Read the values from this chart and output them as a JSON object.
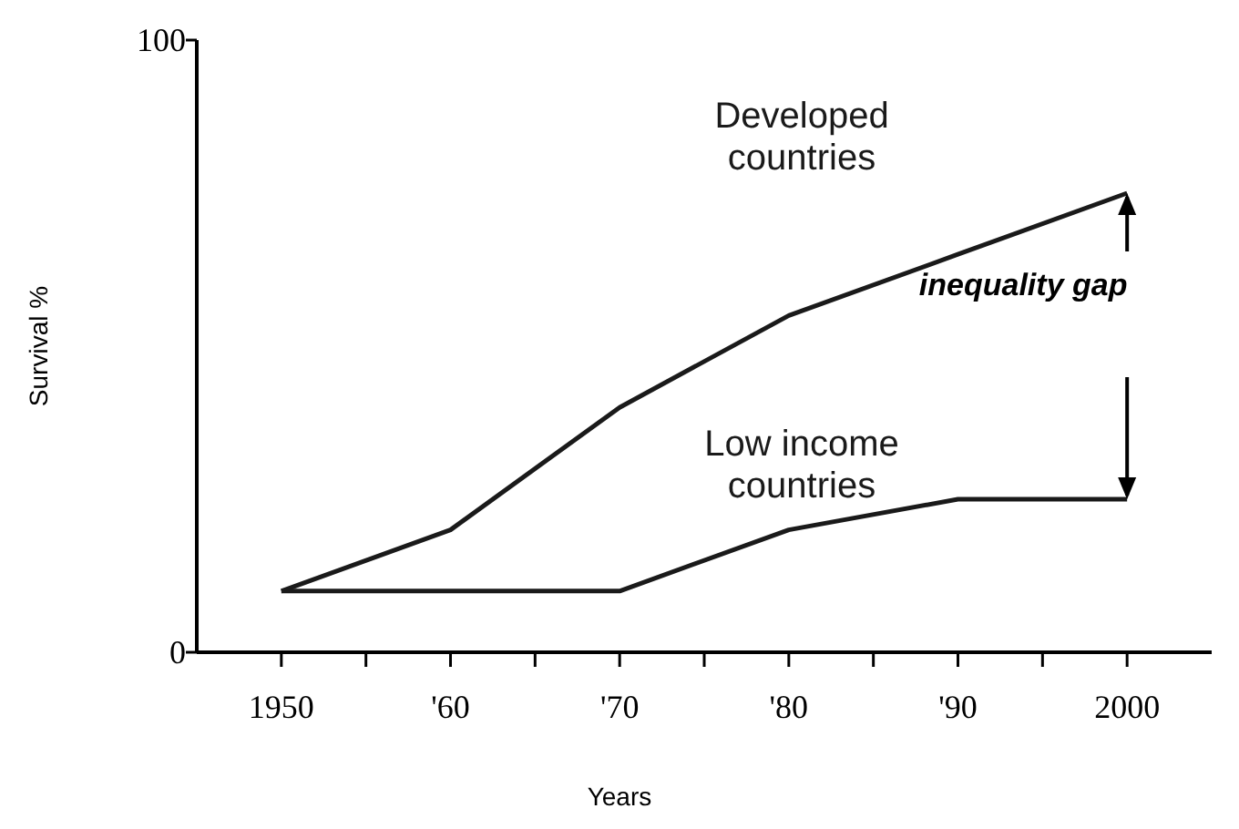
{
  "chart_data": {
    "type": "line",
    "xlabel": "Years",
    "ylabel": "Survival %",
    "x": [
      1950,
      1960,
      1970,
      1980,
      1990,
      2000
    ],
    "series": [
      {
        "name": "Developed countries",
        "color": "#1a1a1a",
        "values": [
          10,
          20,
          40,
          55,
          65,
          75
        ]
      },
      {
        "name": "Low income countries",
        "color": "#1a1a1a",
        "values": [
          10,
          10,
          10,
          20,
          25,
          25
        ]
      }
    ],
    "xlim": [
      1945,
      2005
    ],
    "xticks": [
      1950,
      {
        "value": 1955,
        "label": null
      },
      {
        "value": 1960,
        "label": "'60"
      },
      {
        "value": 1965,
        "label": null
      },
      {
        "value": 1970,
        "label": "'70"
      },
      {
        "value": 1975,
        "label": null
      },
      {
        "value": 1980,
        "label": "'80"
      },
      {
        "value": 1985,
        "label": null
      },
      {
        "value": 1990,
        "label": "'90"
      },
      {
        "value": 1995,
        "label": null
      },
      2000
    ],
    "ylim": [
      0,
      100
    ],
    "yticks": [
      0,
      100
    ],
    "annotations": [
      {
        "text": "inequality gap",
        "x": 2000,
        "y": 75
      }
    ],
    "grid": false,
    "marker": "none",
    "line_style": "solid"
  }
}
